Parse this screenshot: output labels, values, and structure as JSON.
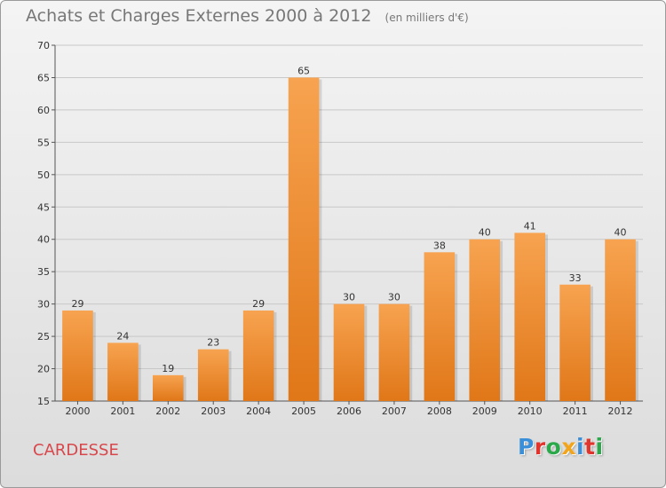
{
  "title": "Achats et Charges Externes 2000 à 2012",
  "subtitle": "(en milliers d'€)",
  "location": "CARDESSE",
  "logo": {
    "letters": [
      "P",
      "r",
      "o",
      "x",
      "i",
      "t",
      "i"
    ],
    "colors": [
      "#3a8fd8",
      "#e0342c",
      "#2aa84a",
      "#f2a51a",
      "#3a8fd8",
      "#e0342c",
      "#2aa84a"
    ]
  },
  "chart_data": {
    "type": "bar",
    "categories": [
      "2000",
      "2001",
      "2002",
      "2003",
      "2004",
      "2005",
      "2006",
      "2007",
      "2008",
      "2009",
      "2010",
      "2011",
      "2012"
    ],
    "values": [
      29,
      24,
      19,
      23,
      29,
      65,
      30,
      30,
      38,
      40,
      41,
      33,
      40
    ],
    "ylim": [
      15,
      70
    ],
    "yticks": [
      15,
      20,
      25,
      30,
      35,
      40,
      45,
      50,
      55,
      60,
      65,
      70
    ],
    "grid": true,
    "data_labels": true,
    "bar_color_top": "#f7a350",
    "bar_color_bottom": "#e07718",
    "grid_color": "#c8c8c8"
  }
}
